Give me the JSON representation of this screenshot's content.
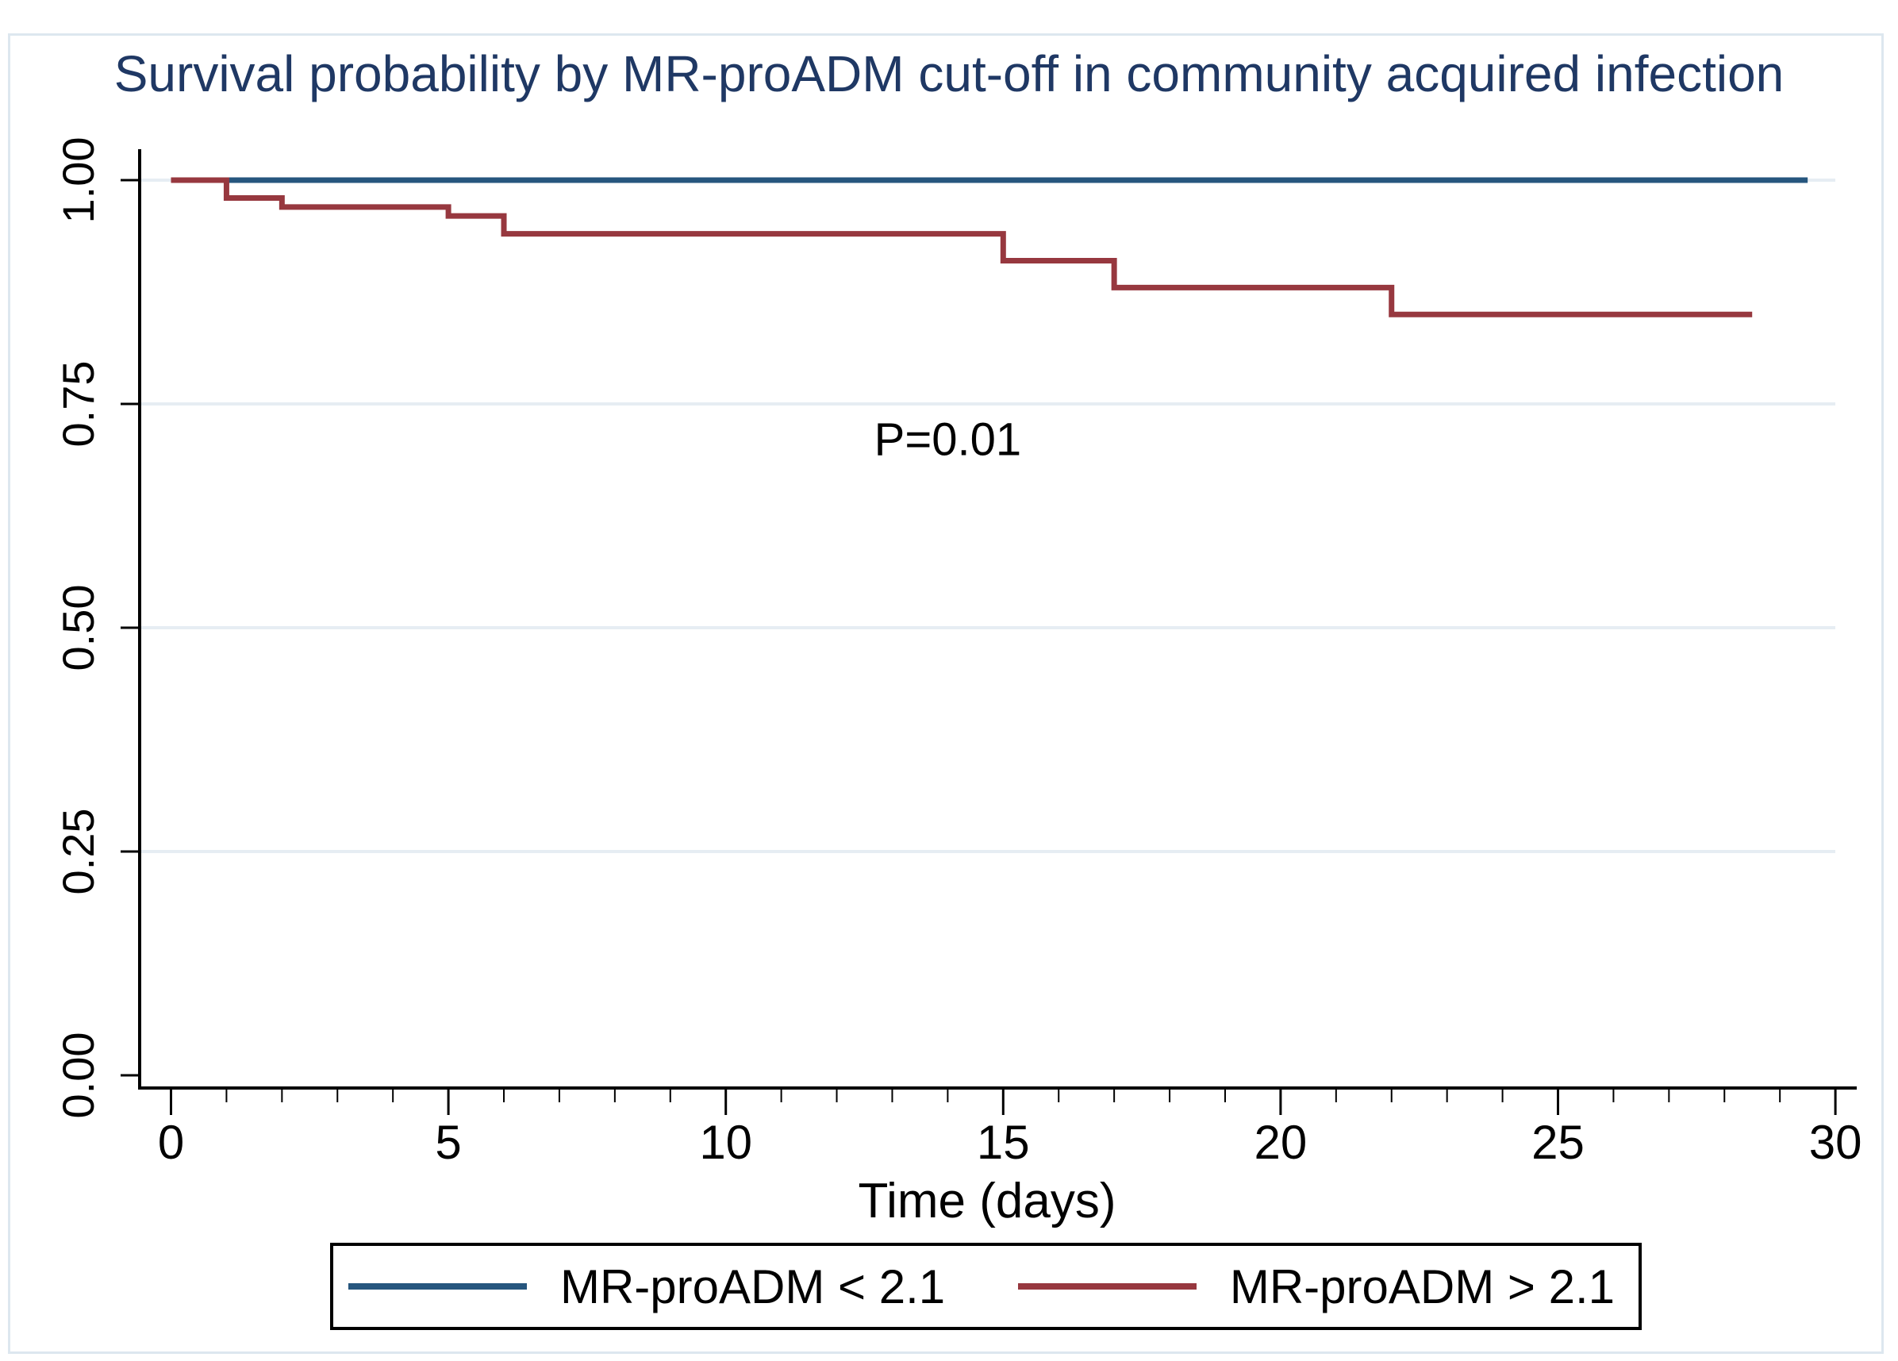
{
  "figure": {
    "background_color": "#ffffff",
    "frame_color": "#dde7ef"
  },
  "chart_data": {
    "type": "line",
    "subtype": "kaplan-meier-step",
    "title": "Survival probability by MR-proADM cut-off in community acquired infection",
    "title_color": "#1f3864",
    "xlabel": "Time (days)",
    "ylabel": "",
    "xlim": [
      0,
      30
    ],
    "ylim": [
      0.0,
      1.0
    ],
    "x_major_tick_values": [
      0,
      5,
      10,
      15,
      20,
      25,
      30
    ],
    "x_major_tick_labels": [
      "0",
      "5",
      "10",
      "15",
      "20",
      "25",
      "30"
    ],
    "x_minor_tick_interval": 1,
    "y_tick_values": [
      0.0,
      0.25,
      0.5,
      0.75,
      1.0
    ],
    "y_tick_labels": [
      "0.00",
      "0.25",
      "0.50",
      "0.75",
      "1.00"
    ],
    "grid": "horizontal",
    "gridline_color": "#e6edf3",
    "axis_color": "#000000",
    "annotation": {
      "text": "P=0.01",
      "x": 14,
      "y": 0.71
    },
    "legend_position": "bottom",
    "series": [
      {
        "name": "MR-proADM < 2.1",
        "color": "#26567e",
        "steps": [
          [
            0,
            1.0
          ]
        ],
        "end_time": 29.5
      },
      {
        "name": "MR-proADM > 2.1",
        "color": "#97383f",
        "steps": [
          [
            0,
            1.0
          ],
          [
            1,
            0.98
          ],
          [
            2,
            0.97
          ],
          [
            5,
            0.96
          ],
          [
            6,
            0.94
          ],
          [
            15,
            0.91
          ],
          [
            17,
            0.88
          ],
          [
            22,
            0.85
          ]
        ],
        "end_time": 28.5
      }
    ]
  }
}
